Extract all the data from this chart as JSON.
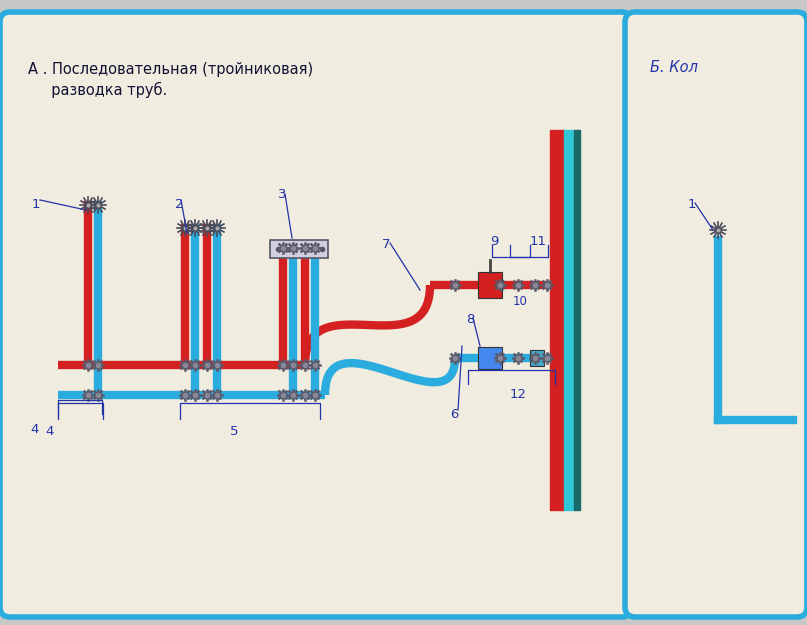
{
  "bg_color": "#f0ece0",
  "outer_bg": "#c8c8c8",
  "border_color": "#2aacdf",
  "hot_color": "#d42020",
  "cold_color": "#2aacdf",
  "wall_hot": "#d42020",
  "wall_cold": "#30c8d8",
  "wall_dark": "#1a6868",
  "label_color": "#2233aa",
  "fitting_color": "#6a6a7a",
  "title_A_line1": "А . Последовательная (тройниковая)",
  "title_A_line2": "  разводка труб.",
  "title_B": "Б. Кол",
  "pipe_lw": 6,
  "fitting_ms": 7
}
